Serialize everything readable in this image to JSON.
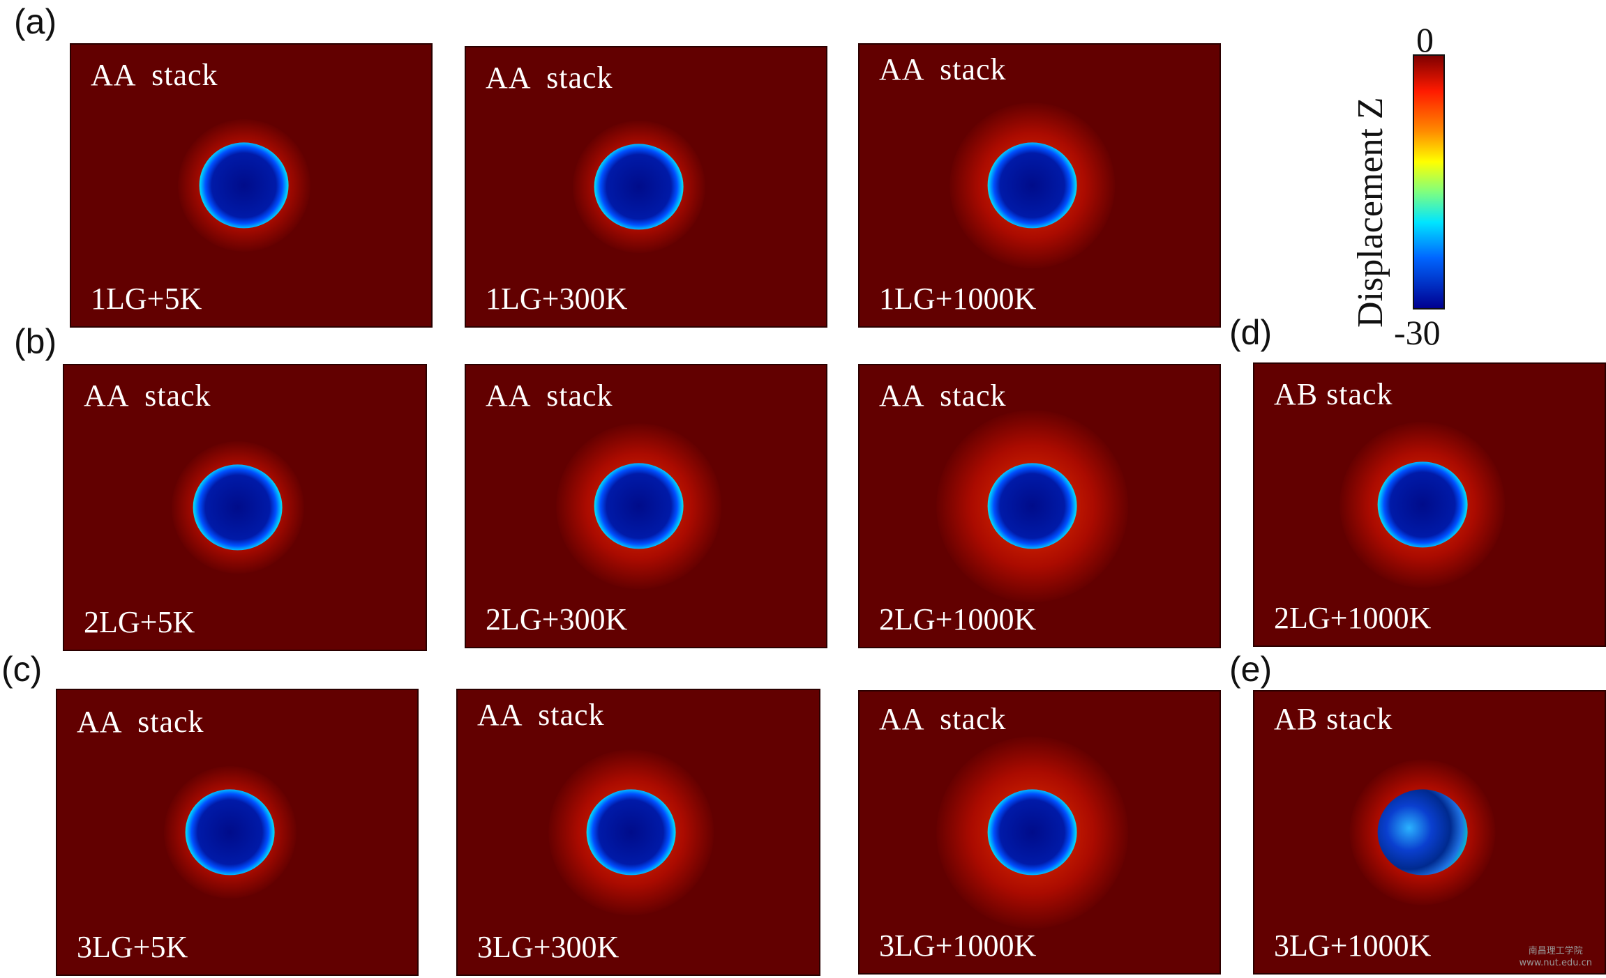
{
  "panel_labels": [
    "(a)",
    "(b)",
    "(c)",
    "(d)",
    "(e)"
  ],
  "colorbar": {
    "title": "Displacement Z",
    "max_label": "0",
    "min_label": "-30",
    "colors": [
      "#7f0000",
      "#ff1a00",
      "#ff8c00",
      "#ffff00",
      "#7fff7f",
      "#00e5ff",
      "#0066ff",
      "#000090"
    ]
  },
  "panels": [
    {
      "id": "a1",
      "stack": "AA  stack",
      "condition": "1LG+5K",
      "roughness": "low"
    },
    {
      "id": "a2",
      "stack": "AA  stack",
      "condition": "1LG+300K",
      "roughness": "low"
    },
    {
      "id": "a3",
      "stack": "AA  stack",
      "condition": "1LG+1000K",
      "roughness": "medium"
    },
    {
      "id": "b1",
      "stack": "AA  stack",
      "condition": "2LG+5K",
      "roughness": "low"
    },
    {
      "id": "b2",
      "stack": "AA  stack",
      "condition": "2LG+300K",
      "roughness": "medium"
    },
    {
      "id": "b3",
      "stack": "AA  stack",
      "condition": "2LG+1000K",
      "roughness": "high"
    },
    {
      "id": "d",
      "stack": "AB stack",
      "condition": "2LG+1000K",
      "roughness": "medium"
    },
    {
      "id": "c1",
      "stack": "AA  stack",
      "condition": "3LG+5K",
      "roughness": "low"
    },
    {
      "id": "c2",
      "stack": "AA  stack",
      "condition": "3LG+300K",
      "roughness": "medium"
    },
    {
      "id": "c3",
      "stack": "AA  stack",
      "condition": "3LG+1000K",
      "roughness": "high"
    },
    {
      "id": "e",
      "stack": "AB stack",
      "condition": "3LG+1000K",
      "roughness": "damaged"
    }
  ],
  "watermark": {
    "line1": "南昌理工学院",
    "line2": "www.nut.edu.cn"
  }
}
